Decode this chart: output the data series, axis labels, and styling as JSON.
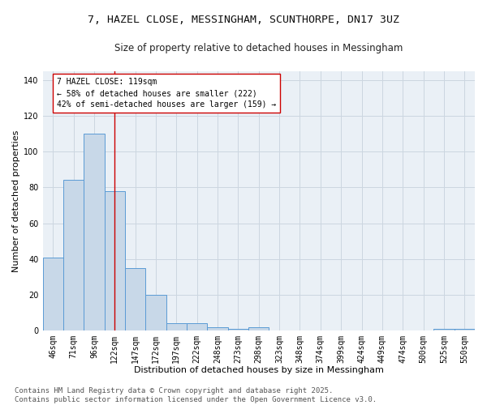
{
  "title_line1": "7, HAZEL CLOSE, MESSINGHAM, SCUNTHORPE, DN17 3UZ",
  "title_line2": "Size of property relative to detached houses in Messingham",
  "xlabel": "Distribution of detached houses by size in Messingham",
  "ylabel": "Number of detached properties",
  "bar_categories": [
    "46sqm",
    "71sqm",
    "96sqm",
    "122sqm",
    "147sqm",
    "172sqm",
    "197sqm",
    "222sqm",
    "248sqm",
    "273sqm",
    "298sqm",
    "323sqm",
    "348sqm",
    "374sqm",
    "399sqm",
    "424sqm",
    "449sqm",
    "474sqm",
    "500sqm",
    "525sqm",
    "550sqm"
  ],
  "bar_values": [
    41,
    84,
    110,
    78,
    35,
    20,
    4,
    4,
    2,
    1,
    2,
    0,
    0,
    0,
    0,
    0,
    0,
    0,
    0,
    1,
    1
  ],
  "bar_color": "#c8d8e8",
  "bar_edge_color": "#5b9bd5",
  "vline_x": 3,
  "vline_color": "#cc0000",
  "annotation_text": "7 HAZEL CLOSE: 119sqm\n← 58% of detached houses are smaller (222)\n42% of semi-detached houses are larger (159) →",
  "annotation_box_color": "#ffffff",
  "annotation_box_edge_color": "#cc0000",
  "ylim": [
    0,
    145
  ],
  "yticks": [
    0,
    20,
    40,
    60,
    80,
    100,
    120,
    140
  ],
  "grid_color": "#ccd6e0",
  "background_color": "#eaf0f6",
  "footer_line1": "Contains HM Land Registry data © Crown copyright and database right 2025.",
  "footer_line2": "Contains public sector information licensed under the Open Government Licence v3.0.",
  "title_fontsize": 9.5,
  "subtitle_fontsize": 8.5,
  "axis_label_fontsize": 8,
  "tick_fontsize": 7,
  "annotation_fontsize": 7,
  "footer_fontsize": 6.5
}
